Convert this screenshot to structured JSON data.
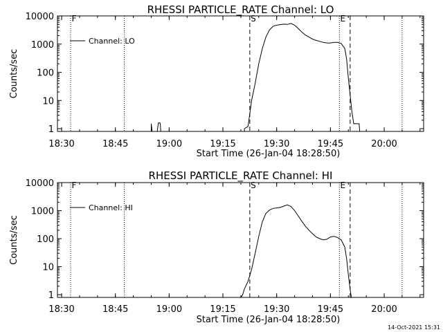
{
  "footer_timestamp": "14-Oct-2021 15:31",
  "chart_data": [
    {
      "type": "line",
      "title": "RHESSI PARTICLE_RATE Channel: LO",
      "xlabel": "Start Time (26-Jan-04 18:28:50)",
      "ylabel": "Counts/sec",
      "yscale": "log",
      "ylim": [
        0.8,
        10000
      ],
      "xlim": [
        "18:28:50",
        "20:11:00"
      ],
      "xticks": [
        "18:30",
        "18:45",
        "19:00",
        "19:15",
        "19:30",
        "19:45",
        "20:00"
      ],
      "yticks": [
        "1",
        "10",
        "100",
        "1000",
        "10000"
      ],
      "legend": {
        "label": "Channel: LO",
        "placement": "top-left"
      },
      "markers": [
        {
          "label": "F",
          "time": "18:32:30",
          "style": "dotted"
        },
        {
          "label": "",
          "time": "18:47:30",
          "style": "dotted"
        },
        {
          "label": "S",
          "time": "19:22:30",
          "style": "dashed"
        },
        {
          "label": "E",
          "time": "19:47:30",
          "style": "dotted"
        },
        {
          "label": "",
          "time": "19:50:30",
          "style": "dashed"
        },
        {
          "label": "",
          "time": "20:05:00",
          "style": "dotted"
        }
      ],
      "series": [
        {
          "name": "Channel: LO",
          "points": [
            [
              "18:28:50",
              0.5
            ],
            [
              "18:55:00",
              0.5
            ],
            [
              "18:55:00",
              1.5
            ],
            [
              "18:55:15",
              0.5
            ],
            [
              "18:56:40",
              0.5
            ],
            [
              "18:57:00",
              1.6
            ],
            [
              "18:57:30",
              1.6
            ],
            [
              "18:57:40",
              0.5
            ],
            [
              "19:21:00",
              0.5
            ],
            [
              "19:21:00",
              1
            ],
            [
              "19:22:00",
              1.2
            ],
            [
              "19:23:00",
              10
            ],
            [
              "19:24:00",
              40
            ],
            [
              "19:25:00",
              200
            ],
            [
              "19:26:00",
              700
            ],
            [
              "19:27:00",
              1800
            ],
            [
              "19:28:00",
              3200
            ],
            [
              "19:29:00",
              4300
            ],
            [
              "19:30:00",
              4700
            ],
            [
              "19:31:00",
              4900
            ],
            [
              "19:32:00",
              5100
            ],
            [
              "19:33:00",
              5000
            ],
            [
              "19:34:00",
              5400
            ],
            [
              "19:35:00",
              4700
            ],
            [
              "19:36:00",
              3600
            ],
            [
              "19:37:00",
              2700
            ],
            [
              "19:38:00",
              2100
            ],
            [
              "19:39:00",
              1800
            ],
            [
              "19:40:00",
              1500
            ],
            [
              "19:41:00",
              1350
            ],
            [
              "19:42:00",
              1250
            ],
            [
              "19:43:00",
              1150
            ],
            [
              "19:44:00",
              1100
            ],
            [
              "19:45:00",
              1100
            ],
            [
              "19:46:00",
              1150
            ],
            [
              "19:47:00",
              1150
            ],
            [
              "19:48:00",
              1050
            ],
            [
              "19:49:00",
              700
            ],
            [
              "19:49:30",
              300
            ],
            [
              "19:50:00",
              60
            ],
            [
              "19:50:30",
              15
            ],
            [
              "19:51:00",
              4
            ],
            [
              "19:51:30",
              1.5
            ],
            [
              "19:52:00",
              1.5
            ],
            [
              "19:53:00",
              1.5
            ],
            [
              "19:53:10",
              0.5
            ],
            [
              "20:11:00",
              0.5
            ]
          ]
        }
      ]
    },
    {
      "type": "line",
      "title": "RHESSI PARTICLE_RATE Channel: HI",
      "xlabel": "Start Time (26-Jan-04 18:28:50)",
      "ylabel": "Counts/sec",
      "yscale": "log",
      "ylim": [
        0.8,
        10000
      ],
      "xlim": [
        "18:28:50",
        "20:11:00"
      ],
      "xticks": [
        "18:30",
        "18:45",
        "19:00",
        "19:15",
        "19:30",
        "19:45",
        "20:00"
      ],
      "yticks": [
        "1",
        "10",
        "100",
        "1000",
        "10000"
      ],
      "legend": {
        "label": "Channel: HI",
        "placement": "top-left"
      },
      "markers": [
        {
          "label": "F",
          "time": "18:32:30",
          "style": "dotted"
        },
        {
          "label": "",
          "time": "18:47:30",
          "style": "dotted"
        },
        {
          "label": "S",
          "time": "19:22:30",
          "style": "dashed"
        },
        {
          "label": "E",
          "time": "19:47:30",
          "style": "dotted"
        },
        {
          "label": "",
          "time": "19:50:30",
          "style": "dashed"
        },
        {
          "label": "",
          "time": "20:05:00",
          "style": "dotted"
        }
      ],
      "series": [
        {
          "name": "Channel: HI",
          "points": [
            [
              "18:28:50",
              0.5
            ],
            [
              "19:20:00",
              0.5
            ],
            [
              "19:20:30",
              1
            ],
            [
              "19:21:00",
              1.6
            ],
            [
              "19:22:00",
              3
            ],
            [
              "19:23:00",
              8
            ],
            [
              "19:24:00",
              30
            ],
            [
              "19:25:00",
              120
            ],
            [
              "19:26:00",
              400
            ],
            [
              "19:27:00",
              800
            ],
            [
              "19:28:00",
              1050
            ],
            [
              "19:29:00",
              1200
            ],
            [
              "19:30:00",
              1250
            ],
            [
              "19:31:00",
              1300
            ],
            [
              "19:32:00",
              1450
            ],
            [
              "19:33:00",
              1600
            ],
            [
              "19:34:00",
              1400
            ],
            [
              "19:35:00",
              1000
            ],
            [
              "19:36:00",
              650
            ],
            [
              "19:37:00",
              420
            ],
            [
              "19:38:00",
              280
            ],
            [
              "19:39:00",
              200
            ],
            [
              "19:40:00",
              150
            ],
            [
              "19:41:00",
              115
            ],
            [
              "19:42:00",
              100
            ],
            [
              "19:43:00",
              90
            ],
            [
              "19:44:00",
              95
            ],
            [
              "19:45:00",
              115
            ],
            [
              "19:46:00",
              120
            ],
            [
              "19:47:00",
              110
            ],
            [
              "19:48:00",
              90
            ],
            [
              "19:49:00",
              50
            ],
            [
              "19:49:30",
              20
            ],
            [
              "19:50:00",
              5
            ],
            [
              "19:50:30",
              1.5
            ],
            [
              "19:50:50",
              0.5
            ],
            [
              "20:11:00",
              0.5
            ]
          ]
        }
      ]
    }
  ]
}
